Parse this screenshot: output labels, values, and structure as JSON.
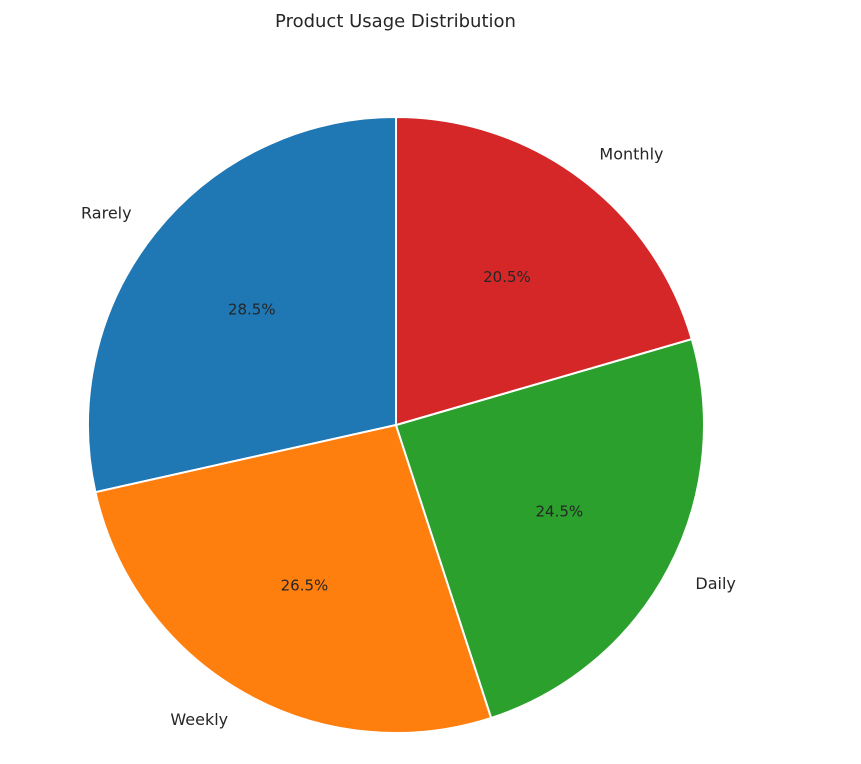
{
  "chart_data": {
    "type": "pie",
    "title": "Product Usage Distribution",
    "start_angle_deg": 90,
    "direction": "counterclockwise",
    "slices": [
      {
        "label": "Rarely",
        "value": 28.5,
        "pct_label": "28.5%",
        "color": "#1f77b4"
      },
      {
        "label": "Weekly",
        "value": 26.5,
        "pct_label": "26.5%",
        "color": "#ff7f0e"
      },
      {
        "label": "Daily",
        "value": 24.5,
        "pct_label": "24.5%",
        "color": "#2ca02c"
      },
      {
        "label": "Monthly",
        "value": 20.5,
        "pct_label": "20.5%",
        "color": "#d62728"
      }
    ]
  }
}
